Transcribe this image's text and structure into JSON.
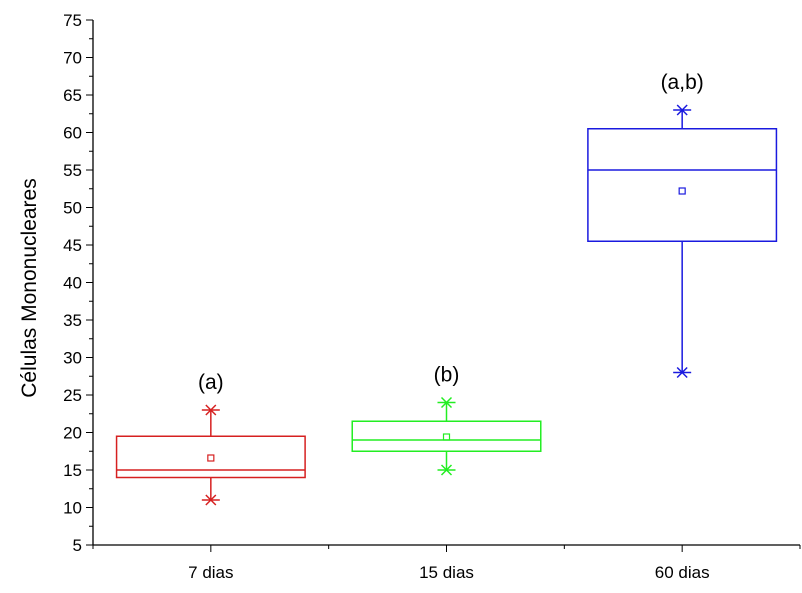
{
  "chart_data": {
    "type": "box",
    "ylabel": "Células Mononucleares",
    "xlabel": "",
    "title": "",
    "ylim": [
      5,
      75
    ],
    "y_major_step": 5,
    "y_minor_step": 2.5,
    "grid": false,
    "legend": "none",
    "categories": [
      "7 dias",
      "15 dias",
      "60 dias"
    ],
    "series": [
      {
        "color": "#d62020",
        "whisker_min": 11,
        "q1": 14,
        "median": 15,
        "q3": 19.5,
        "whisker_max": 23,
        "mean": 16.6,
        "annotation": "(a)"
      },
      {
        "color": "#22ee22",
        "whisker_min": 15,
        "q1": 17.5,
        "median": 19,
        "q3": 21.5,
        "whisker_max": 24,
        "mean": 19.4,
        "annotation": "(b)"
      },
      {
        "color": "#1a1adf",
        "whisker_min": 28,
        "q1": 45.5,
        "median": 55,
        "q3": 60.5,
        "whisker_max": 63,
        "mean": 52.2,
        "annotation": "(a,b)"
      }
    ]
  }
}
